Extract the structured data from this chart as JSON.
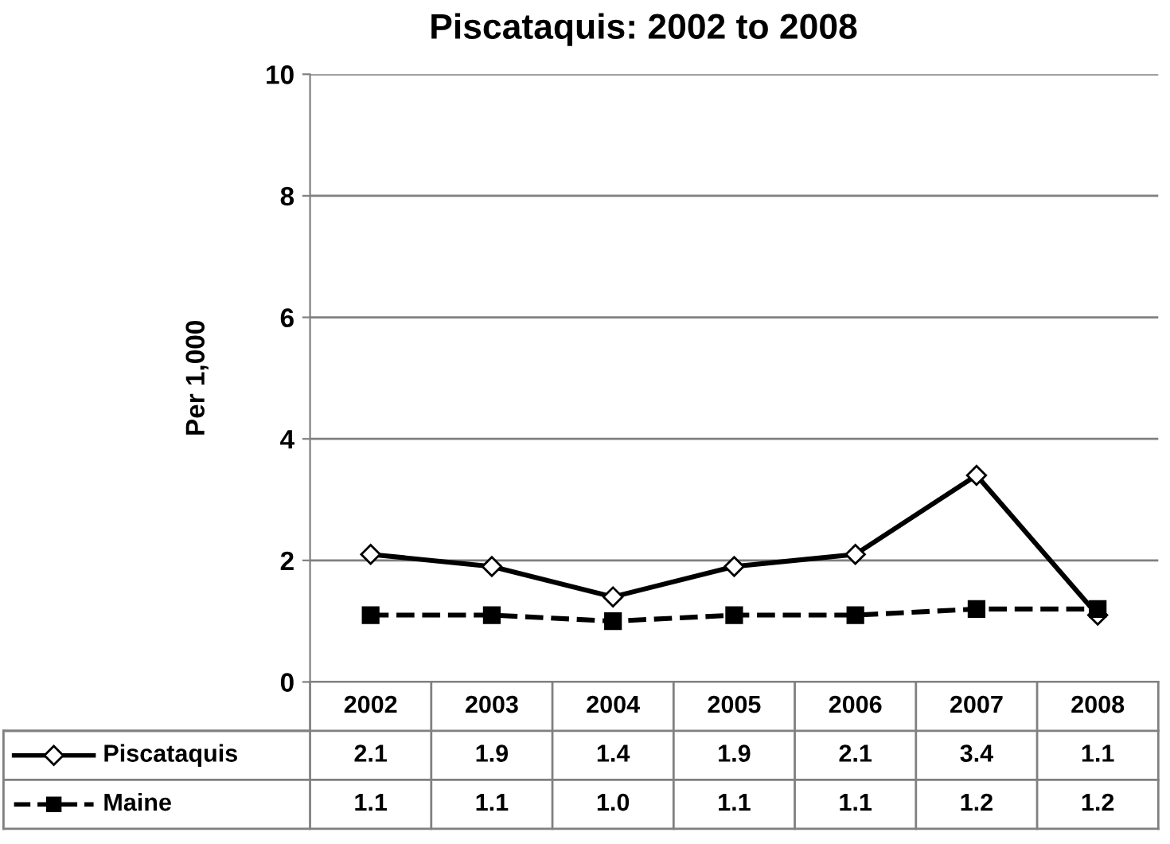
{
  "chart_data": {
    "type": "line",
    "title": "Piscataquis: 2002 to 2008",
    "ylabel": "Per 1,000",
    "categories": [
      "2002",
      "2003",
      "2004",
      "2005",
      "2006",
      "2007",
      "2008"
    ],
    "series": [
      {
        "name": "Piscataquis",
        "color": "#000000",
        "values": [
          2.1,
          1.9,
          1.4,
          1.9,
          2.1,
          3.4,
          1.1
        ],
        "value_labels": [
          "2.1",
          "1.9",
          "1.4",
          "1.9",
          "2.1",
          "3.4",
          "1.1"
        ],
        "marker": "diamond",
        "line_style": "solid"
      },
      {
        "name": "Maine",
        "color": "#000000",
        "values": [
          1.1,
          1.1,
          1.0,
          1.1,
          1.1,
          1.2,
          1.2
        ],
        "value_labels": [
          "1.1",
          "1.1",
          "1.0",
          "1.1",
          "1.1",
          "1.2",
          "1.2"
        ],
        "marker": "square",
        "line_style": "dashed"
      }
    ],
    "ylim": [
      0,
      10
    ],
    "yticks": [
      0,
      2,
      4,
      6,
      8,
      10
    ],
    "grid": "y",
    "legend": "bottom"
  }
}
